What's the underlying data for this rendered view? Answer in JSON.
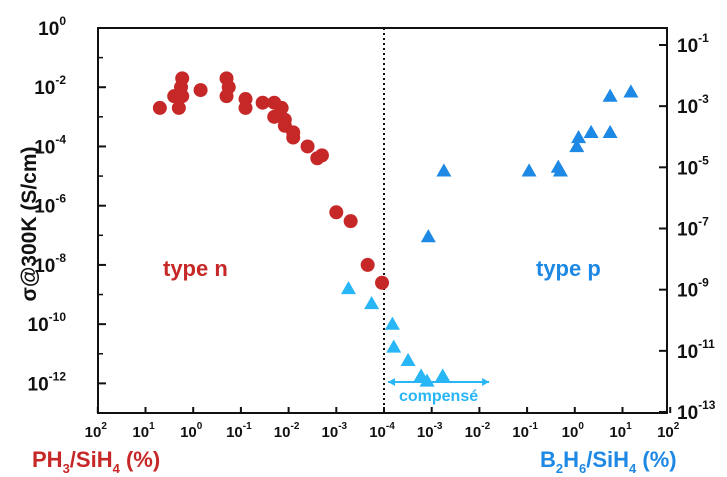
{
  "chart_data": {
    "type": "scatter",
    "ylabel": "σ@300K (S/cm)",
    "y_left_ticks": [
      {
        "base": "10",
        "exp": "0"
      },
      {
        "base": "10",
        "exp": "-2"
      },
      {
        "base": "10",
        "exp": "-4"
      },
      {
        "base": "10",
        "exp": "-6"
      },
      {
        "base": "10",
        "exp": "-8"
      },
      {
        "base": "10",
        "exp": "-10"
      },
      {
        "base": "10",
        "exp": "-12"
      }
    ],
    "y_right_ticks": [
      {
        "base": "10",
        "exp": "-1"
      },
      {
        "base": "10",
        "exp": "-3"
      },
      {
        "base": "10",
        "exp": "-5"
      },
      {
        "base": "10",
        "exp": "-7"
      },
      {
        "base": "10",
        "exp": "-9"
      },
      {
        "base": "10",
        "exp": "-11"
      },
      {
        "base": "10",
        "exp": "-13"
      }
    ],
    "x_ticks_left": [
      {
        "base": "10",
        "exp": "2"
      },
      {
        "base": "10",
        "exp": "1"
      },
      {
        "base": "10",
        "exp": "0"
      },
      {
        "base": "10",
        "exp": "-1"
      },
      {
        "base": "10",
        "exp": "-2"
      },
      {
        "base": "10",
        "exp": "-3"
      },
      {
        "base": "10",
        "exp": "-4"
      }
    ],
    "x_ticks_right": [
      {
        "base": "10",
        "exp": "-3"
      },
      {
        "base": "10",
        "exp": "-2"
      },
      {
        "base": "10",
        "exp": "-1"
      },
      {
        "base": "10",
        "exp": "0"
      },
      {
        "base": "10",
        "exp": "1"
      },
      {
        "base": "10",
        "exp": "2"
      }
    ],
    "xlabel_left": {
      "a": "PH",
      "sub": "3",
      "b": "/SiH",
      "sub2": "4",
      "c": " (%)"
    },
    "xlabel_right": {
      "a": "B",
      "sub": "2",
      "b": "H",
      "sub2": "6",
      "c": "/SiH",
      "sub3": "4",
      "d": " (%)"
    },
    "annotations": {
      "type_n": "type n",
      "type_p": "type p",
      "compense": "compensé"
    },
    "colors": {
      "n": "#c62828",
      "p": "#1e88e5",
      "compense": "#29b6f6",
      "axis": "#111111"
    },
    "series": [
      {
        "id": "n",
        "marker": "circle",
        "x_axis": "PH3/SiH4 (%)",
        "points": [
          [
            5,
            0.002
          ],
          [
            2.5,
            0.005
          ],
          [
            2,
            0.002
          ],
          [
            1.8,
            0.01
          ],
          [
            1.7,
            0.02
          ],
          [
            1.7,
            0.005
          ],
          [
            0.7,
            0.008
          ],
          [
            0.2,
            0.02
          ],
          [
            0.2,
            0.005
          ],
          [
            0.18,
            0.01
          ],
          [
            0.08,
            0.004
          ],
          [
            0.08,
            0.002
          ],
          [
            0.035,
            0.003
          ],
          [
            0.02,
            0.001
          ],
          [
            0.02,
            0.003
          ],
          [
            0.014,
            0.002
          ],
          [
            0.012,
            0.0008
          ],
          [
            0.012,
            0.0005
          ],
          [
            0.008,
            0.0003
          ],
          [
            0.008,
            0.0002
          ],
          [
            0.004,
            0.0001
          ],
          [
            0.0025,
            4e-05
          ],
          [
            0.002,
            5e-05
          ],
          [
            0.001,
            6e-07
          ],
          [
            0.0005,
            3e-07
          ],
          [
            0.00022,
            1e-08
          ],
          [
            0.00011,
            2.5e-09
          ]
        ]
      },
      {
        "id": "compense",
        "marker": "triangle",
        "x_axis": "B2H6/SiH4 (%)",
        "points": [
          [
            1.8e-05,
            1.6e-09
          ],
          [
            5.5e-05,
            5e-10
          ],
          [
            0.00015,
            1e-10
          ],
          [
            0.00016,
            1.7e-11
          ],
          [
            0.00032,
            6e-12
          ],
          [
            0.0006,
            1.8e-12
          ],
          [
            0.0008,
            1.2e-12
          ],
          [
            0.0017,
            1.8e-12
          ]
        ]
      },
      {
        "id": "p",
        "marker": "triangle",
        "x_axis": "B2H6/SiH4 (%)",
        "points": [
          [
            0.0018,
            1.5e-05
          ],
          [
            0.00085,
            9e-08
          ],
          [
            0.11,
            1.5e-05
          ],
          [
            0.45,
            2e-05
          ],
          [
            0.5,
            1.5e-05
          ],
          [
            1.1,
            0.0001
          ],
          [
            1.2,
            0.0002
          ],
          [
            2.2,
            0.0003
          ],
          [
            5.5,
            0.0003
          ],
          [
            5.5,
            0.005
          ],
          [
            15,
            0.007
          ]
        ]
      }
    ],
    "xlim_decades": [
      100,
      0.0001
    ],
    "ylim_left": [
      1e-13,
      1
    ]
  }
}
